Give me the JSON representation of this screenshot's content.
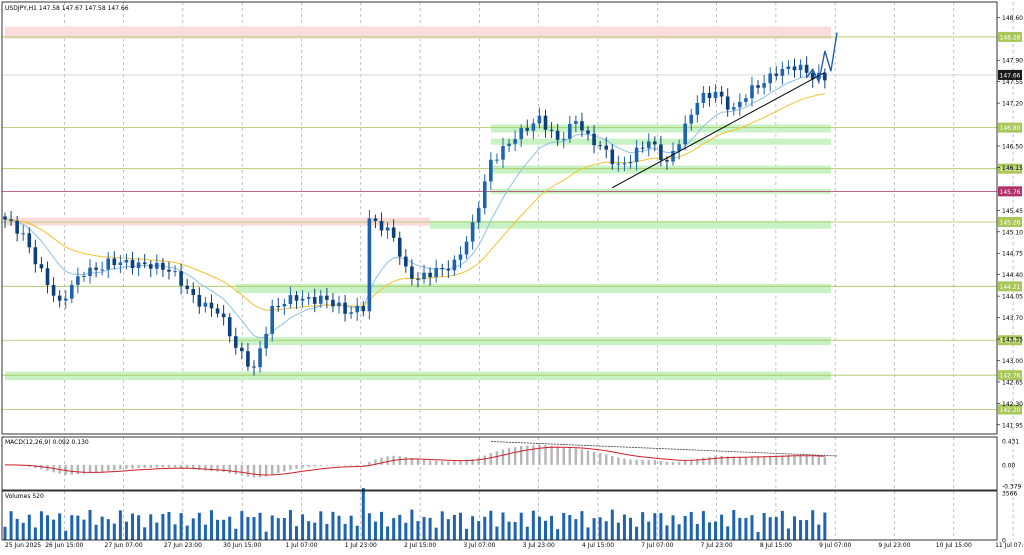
{
  "chart_data": {
    "type": "candlestick",
    "symbol_header": "USDJPY,H1  147.58 147.67 147.58 147.66",
    "x_labels": [
      "25 Jun 2025",
      "26 Jun 15:00",
      "27 Jun 07:00",
      "27 Jun 23:00",
      "30 Jun 15:00",
      "1 Jul 07:00",
      "1 Jul 23:00",
      "2 Jul 15:00",
      "3 Jul 07:00",
      "3 Jul 23:00",
      "4 Jul 15:00",
      "7 Jul 07:00",
      "7 Jul 23:00",
      "8 Jul 15:00",
      "9 Jul 07:00",
      "9 Jul 23:00",
      "10 Jul 15:00",
      "11 Jul 07:00",
      "11 Jul 23:00",
      "14 Jul 15:00",
      "15 Jul 07:00"
    ],
    "price_axis_ticks": [
      "148.60",
      "147.90",
      "147.55",
      "147.20",
      "146.50",
      "146.15",
      "145.45",
      "145.10",
      "144.75",
      "144.40",
      "144.05",
      "143.70",
      "143.35",
      "143.00",
      "142.65",
      "142.30",
      "141.95"
    ],
    "ylim": [
      141.8,
      148.85
    ],
    "current_price_label": "147.66",
    "current_price": 147.66,
    "levels": [
      {
        "label": "148.28",
        "price": 148.28,
        "kind": "resistance"
      },
      {
        "label": "146.80",
        "price": 146.8,
        "kind": "support"
      },
      {
        "label": "146.13",
        "price": 146.13,
        "kind": "support"
      },
      {
        "label": "145.76",
        "price": 145.76,
        "kind": "pivot"
      },
      {
        "label": "145.26",
        "price": 145.26,
        "kind": "support"
      },
      {
        "label": "144.21",
        "price": 144.21,
        "kind": "support"
      },
      {
        "label": "143.33",
        "price": 143.33,
        "kind": "support"
      },
      {
        "label": "142.76",
        "price": 142.76,
        "kind": "support"
      },
      {
        "label": "142.20",
        "price": 142.2,
        "kind": "support"
      }
    ],
    "zones": [
      {
        "kind": "resistance",
        "from": 148.25,
        "to": 148.45,
        "start_index": 0,
        "end_index": 136
      },
      {
        "kind": "resistance",
        "from": 145.2,
        "to": 145.33,
        "start_index": 0,
        "end_index": 70
      },
      {
        "kind": "support",
        "from": 146.72,
        "to": 146.85,
        "start_index": 80,
        "end_index": 136
      },
      {
        "kind": "support",
        "from": 146.52,
        "to": 146.62,
        "start_index": 80,
        "end_index": 136
      },
      {
        "kind": "support",
        "from": 146.05,
        "to": 146.18,
        "start_index": 80,
        "end_index": 136
      },
      {
        "kind": "support",
        "from": 145.72,
        "to": 145.8,
        "start_index": 80,
        "end_index": 136
      },
      {
        "kind": "support",
        "from": 145.15,
        "to": 145.28,
        "start_index": 70,
        "end_index": 136
      },
      {
        "kind": "support",
        "from": 144.1,
        "to": 144.25,
        "start_index": 38,
        "end_index": 136
      },
      {
        "kind": "support",
        "from": 143.25,
        "to": 143.38,
        "start_index": 38,
        "end_index": 136
      },
      {
        "kind": "support",
        "from": 142.68,
        "to": 142.82,
        "start_index": 0,
        "end_index": 136
      }
    ],
    "trendline": {
      "from_index": 100,
      "from_price": 145.82,
      "to_index": 135,
      "to_price": 147.7
    },
    "projection_path": [
      {
        "index": 132,
        "price": 147.62
      },
      {
        "index": 133,
        "price": 147.75
      },
      {
        "index": 134,
        "price": 147.55
      },
      {
        "index": 135,
        "price": 148.05
      },
      {
        "index": 136,
        "price": 147.72
      },
      {
        "index": 137,
        "price": 148.35
      }
    ],
    "macd_label": "MACD(12,26,9) 0.092 0.130",
    "macd_ticks": [
      "0.431",
      "0.00",
      "-0.379"
    ],
    "macd_ylim": [
      -0.45,
      0.5
    ],
    "volume_label": "Volumes 520",
    "volume_ticks": [
      "3566",
      "0"
    ],
    "volume_ylim": [
      0,
      3700
    ]
  },
  "colors": {
    "bull": "#1e63b0",
    "bear": "#0d3f7a",
    "ema_fast": "#8ec1e8",
    "ema_slow": "#f2c230",
    "support_fill": "#c8f2c3",
    "resistance_fill": "#fbdcdc",
    "level_line": "#a8c65a",
    "pivot_line": "#b0306a",
    "macd_hist": "#b5b5b5",
    "macd_signal": "#d0202a"
  }
}
